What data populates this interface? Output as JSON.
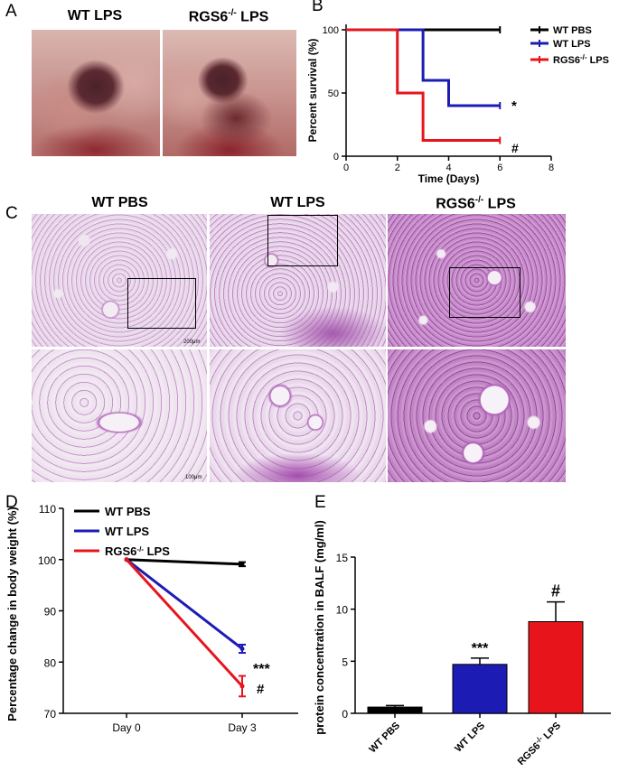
{
  "panel_a": {
    "letter": "A",
    "labels": [
      "WT LPS",
      "RGS6",
      "-/-",
      " LPS"
    ]
  },
  "panel_c": {
    "letter": "C",
    "labels": [
      "WT PBS",
      "WT LPS",
      "RGS6",
      "-/-",
      " LPS"
    ],
    "scale_top": "200μm",
    "scale_bottom": "100μm"
  },
  "chart_data": [
    {
      "panel": "B",
      "type": "line",
      "ylabel": "Percent survival (%)",
      "xlabel": "Time (Days)",
      "xlim": [
        0,
        8
      ],
      "ylim": [
        0,
        100
      ],
      "xticks": [
        "0",
        "2",
        "4",
        "6",
        "8"
      ],
      "yticks": [
        "0",
        "50",
        "100"
      ],
      "legend_position": "right",
      "series": [
        {
          "name": "WT PBS",
          "color": "#000000",
          "x": [
            0,
            6
          ],
          "y": [
            100,
            100
          ]
        },
        {
          "name": "WT LPS",
          "color": "#1c1cb4",
          "x": [
            0,
            3,
            3,
            4,
            4,
            6
          ],
          "y": [
            100,
            100,
            60,
            60,
            40,
            40
          ]
        },
        {
          "name": "RGS6-/- LPS",
          "color": "#e8141c",
          "x": [
            0,
            2,
            2,
            3,
            3,
            6
          ],
          "y": [
            100,
            100,
            50,
            50,
            12.5,
            12.5
          ]
        }
      ],
      "legend": [
        {
          "main": "WT PBS",
          "sup": "",
          "tail": ""
        },
        {
          "main": "WT LPS",
          "sup": "",
          "tail": ""
        },
        {
          "main": "RGS6",
          "sup": "-/-",
          "tail": " LPS"
        }
      ],
      "annotations": [
        "*",
        "#"
      ]
    },
    {
      "panel": "D",
      "type": "line",
      "ylabel": "Percentage change in body weight (%)",
      "categories": [
        "Day 0",
        "Day 3"
      ],
      "ylim": [
        70,
        110
      ],
      "yticks": [
        "70",
        "80",
        "90",
        "100",
        "110"
      ],
      "legend_position": "top-left",
      "series": [
        {
          "name": "WT PBS",
          "color": "#000000",
          "values": [
            100,
            99.1
          ],
          "error": [
            0,
            0.4
          ]
        },
        {
          "name": "WT LPS",
          "color": "#1c1cb4",
          "values": [
            100,
            82.6
          ],
          "error": [
            0,
            0.8
          ]
        },
        {
          "name": "RGS6-/- LPS",
          "color": "#e8141c",
          "values": [
            100,
            75.3
          ],
          "error": [
            0,
            2.0
          ]
        }
      ],
      "legend": [
        {
          "main": "WT PBS",
          "sup": "",
          "tail": ""
        },
        {
          "main": "WT LPS",
          "sup": "",
          "tail": ""
        },
        {
          "main": "RGS6",
          "sup": "-/-",
          "tail": " LPS"
        }
      ],
      "annotations": [
        "***",
        "#"
      ]
    },
    {
      "panel": "E",
      "type": "bar",
      "ylabel": "protein concentration in BALF (mg/ml)",
      "ylim": [
        0,
        15
      ],
      "yticks": [
        "0",
        "5",
        "10",
        "15"
      ],
      "categories": [
        {
          "main": "WT PBS",
          "sup": "",
          "tail": ""
        },
        {
          "main": "WT LPS",
          "sup": "",
          "tail": ""
        },
        {
          "main": "RGS6",
          "sup": "-/-",
          "tail": " LPS"
        }
      ],
      "values": [
        0.6,
        4.7,
        8.8
      ],
      "errors": [
        0.15,
        0.6,
        1.9
      ],
      "colors": [
        "#000000",
        "#1c1cb4",
        "#e8141c"
      ],
      "annotations": [
        "",
        "***",
        "#"
      ]
    }
  ]
}
